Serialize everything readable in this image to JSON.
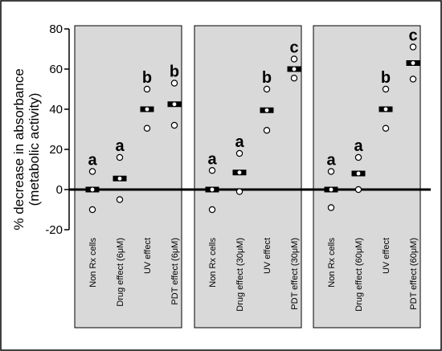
{
  "chart_data": {
    "type": "scatter",
    "ylabel": [
      "% decrease in absorbance",
      "(metabolic activity)"
    ],
    "ylim": [
      -20,
      80
    ],
    "yticks": [
      -20,
      0,
      20,
      40,
      60,
      80
    ],
    "grid": false,
    "panels": [
      {
        "groups": [
          {
            "label": "Non Rx cells",
            "letter": "a",
            "mean": 0,
            "points": [
              9,
              -10
            ]
          },
          {
            "label": "Drug effect (6μM)",
            "letter": "a",
            "mean": 5.5,
            "points": [
              16,
              -5
            ]
          },
          {
            "label": "UV effect",
            "letter": "b",
            "mean": 40,
            "points": [
              50,
              30.5
            ]
          },
          {
            "label": "PDT effect (6μM)",
            "letter": "b",
            "mean": 42.5,
            "points": [
              53,
              32
            ]
          }
        ]
      },
      {
        "groups": [
          {
            "label": "Non Rx cells",
            "letter": "a",
            "mean": 0,
            "points": [
              9.5,
              -10
            ]
          },
          {
            "label": "Drug effect (30μM)",
            "letter": "a",
            "mean": 8.5,
            "points": [
              18,
              -1
            ]
          },
          {
            "label": "UV effect",
            "letter": "b",
            "mean": 39.5,
            "points": [
              50,
              29.5
            ]
          },
          {
            "label": "PDT effect (30μM)",
            "letter": "c",
            "mean": 60,
            "points": [
              65,
              55.5
            ]
          }
        ]
      },
      {
        "groups": [
          {
            "label": "Non Rx cells",
            "letter": "a",
            "mean": 0,
            "points": [
              9,
              -9
            ]
          },
          {
            "label": "Drug effect (60μM)",
            "letter": "a",
            "mean": 8,
            "points": [
              16,
              0
            ]
          },
          {
            "label": "UV effect",
            "letter": "b",
            "mean": 40,
            "points": [
              50,
              30.5
            ]
          },
          {
            "label": "PDT effect (60μM)",
            "letter": "c",
            "mean": 63,
            "points": [
              71,
              55
            ]
          }
        ]
      }
    ]
  }
}
